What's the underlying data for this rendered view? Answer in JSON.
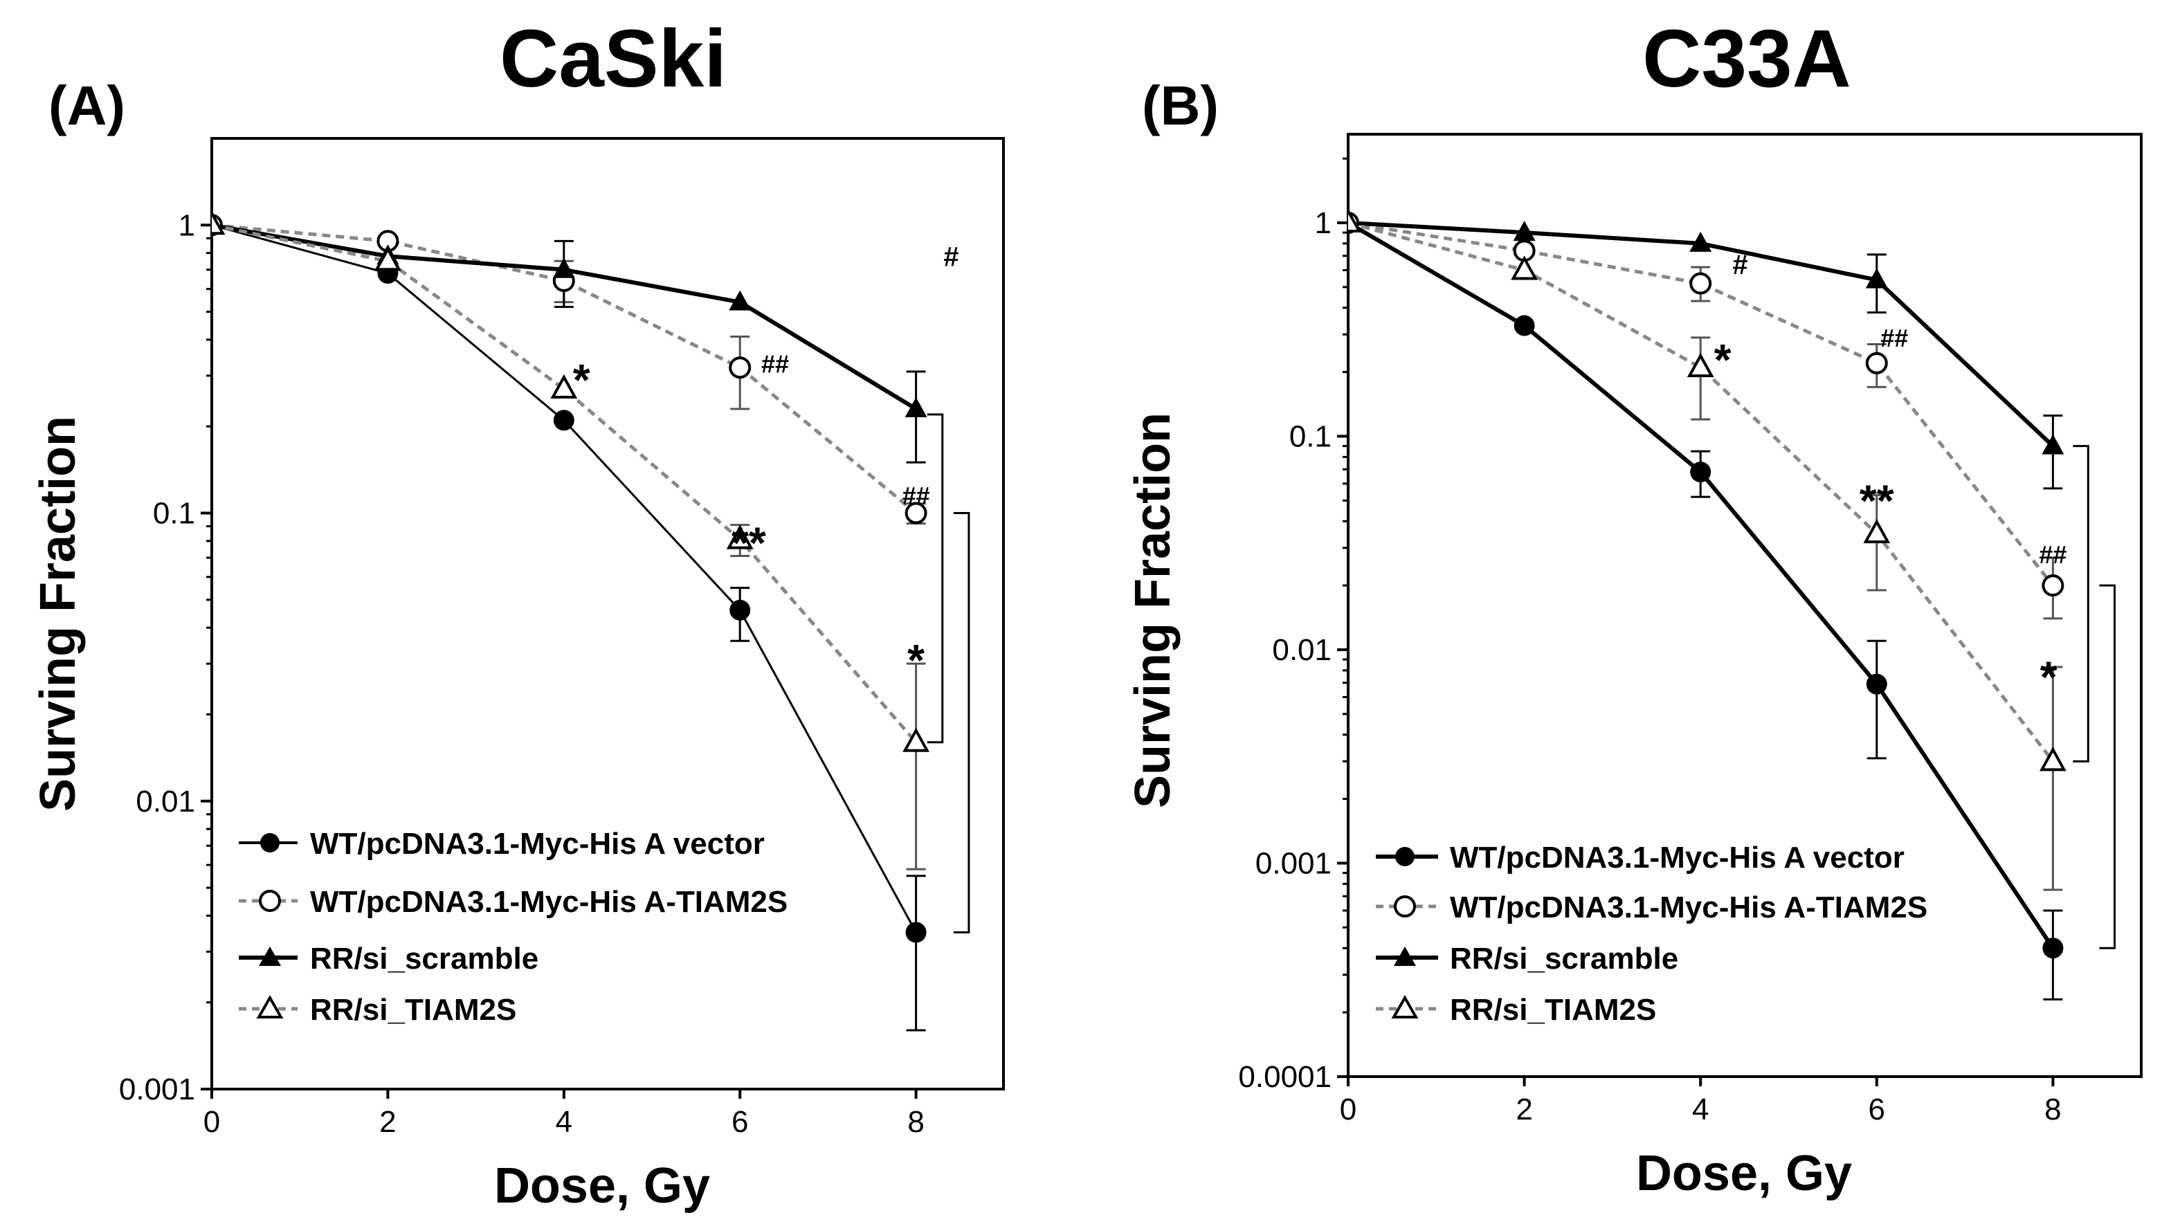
{
  "chart_data": [
    {
      "type": "line",
      "panel": "(A)",
      "title": "CaSki",
      "xlabel": "Dose, Gy",
      "ylabel": "Surving Fraction",
      "yscale": "log",
      "xlim": [
        0,
        9
      ],
      "ylim": [
        0.001,
        2
      ],
      "x_ticks": [
        "0",
        "2",
        "4",
        "6",
        "8"
      ],
      "y_ticks": [
        "0.001",
        "0.01",
        "0.1",
        "1"
      ],
      "legend_position": "bottom-left",
      "x": [
        0,
        2,
        4,
        6,
        8
      ],
      "series": [
        {
          "name": "WT/pcDNA3.1-Myc-His A vector",
          "marker": "filled-circle",
          "line": "solid-thin",
          "color": "#000000",
          "values": [
            1,
            0.68,
            0.21,
            0.046,
            0.0035
          ],
          "err_low": [
            null,
            null,
            null,
            0.036,
            0.0016
          ],
          "err_high": [
            null,
            null,
            null,
            0.055,
            0.0055
          ]
        },
        {
          "name": "WT/pcDNA3.1-Myc-His A-TIAM2S",
          "marker": "open-circle",
          "line": "dashed",
          "color": "#888888",
          "values": [
            1,
            0.88,
            0.64,
            0.32,
            0.1
          ],
          "err_low": [
            null,
            null,
            0.54,
            0.23,
            0.092
          ],
          "err_high": [
            null,
            null,
            0.75,
            0.41,
            0.108
          ]
        },
        {
          "name": "RR/si_scramble",
          "marker": "filled-triangle",
          "line": "solid-thick",
          "color": "#000000",
          "values": [
            1,
            0.78,
            0.7,
            0.54,
            0.23
          ],
          "err_low": [
            null,
            null,
            0.52,
            null,
            0.15
          ],
          "err_high": [
            null,
            null,
            0.88,
            null,
            0.31
          ]
        },
        {
          "name": "RR/si_TIAM2S",
          "marker": "open-triangle",
          "line": "dashed",
          "color": "#888888",
          "values": [
            1,
            0.75,
            0.27,
            0.081,
            0.016
          ],
          "err_low": [
            null,
            null,
            null,
            0.071,
            0.0058
          ],
          "err_high": [
            null,
            null,
            null,
            0.091,
            0.03
          ]
        }
      ],
      "annotations": [
        {
          "text": "#",
          "x": 8.4,
          "y": 0.78
        },
        {
          "text": "*",
          "x": 4.2,
          "y": 0.32
        },
        {
          "text": "##",
          "x": 6.4,
          "y": 0.33
        },
        {
          "text": "**",
          "x": 6.1,
          "y": 0.087
        },
        {
          "text": "##",
          "x": 8.0,
          "y": 0.115
        },
        {
          "text": "*",
          "x": 8.0,
          "y": 0.034
        }
      ],
      "brackets": [
        {
          "x": 8.3,
          "y_top": 0.22,
          "y_bottom": 0.016
        },
        {
          "x": 8.6,
          "y_top": 0.1,
          "y_bottom": 0.0035
        }
      ]
    },
    {
      "type": "line",
      "panel": "(B)",
      "title": "C33A",
      "xlabel": "Dose, Gy",
      "ylabel": "Surving Fraction",
      "yscale": "log",
      "xlim": [
        0,
        9
      ],
      "ylim": [
        0.0001,
        2.6
      ],
      "x_ticks": [
        "0",
        "2",
        "4",
        "6",
        "8"
      ],
      "y_ticks": [
        "0.0001",
        "0.001",
        "0.01",
        "0.1",
        "1"
      ],
      "legend_position": "bottom-left",
      "x": [
        0,
        2,
        4,
        6,
        8
      ],
      "series": [
        {
          "name": "WT/pcDNA3.1-Myc-His A vector",
          "marker": "filled-circle",
          "line": "solid-thick",
          "color": "#000000",
          "values": [
            1,
            0.33,
            0.068,
            0.0069,
            0.0004
          ],
          "err_low": [
            null,
            null,
            0.052,
            0.0031,
            0.00023
          ],
          "err_high": [
            null,
            null,
            0.085,
            0.011,
            0.0006
          ]
        },
        {
          "name": "WT/pcDNA3.1-Myc-His A-TIAM2S",
          "marker": "open-circle",
          "line": "dashed",
          "color": "#888888",
          "values": [
            1,
            0.74,
            0.52,
            0.22,
            0.02
          ],
          "err_low": [
            null,
            null,
            0.43,
            0.17,
            0.014
          ],
          "err_high": [
            null,
            null,
            0.62,
            0.27,
            0.027
          ]
        },
        {
          "name": "RR/si_scramble",
          "marker": "filled-triangle",
          "line": "solid-thick",
          "color": "#000000",
          "values": [
            1,
            0.9,
            0.8,
            0.54,
            0.09
          ],
          "err_low": [
            null,
            null,
            null,
            0.38,
            0.057
          ],
          "err_high": [
            null,
            null,
            null,
            0.71,
            0.125
          ]
        },
        {
          "name": "RR/si_TIAM2S",
          "marker": "open-triangle",
          "line": "dashed",
          "color": "#888888",
          "values": [
            1,
            0.6,
            0.21,
            0.035,
            0.003
          ],
          "err_low": [
            null,
            null,
            0.12,
            0.019,
            0.00075
          ],
          "err_high": [
            null,
            null,
            0.29,
            0.053,
            0.0083
          ]
        }
      ],
      "annotations": [
        {
          "text": "#",
          "x": 4.45,
          "y": 0.64
        },
        {
          "text": "*",
          "x": 4.25,
          "y": 0.26
        },
        {
          "text": "##",
          "x": 6.2,
          "y": 0.29
        },
        {
          "text": "**",
          "x": 6.0,
          "y": 0.057
        },
        {
          "text": "##",
          "x": 8.0,
          "y": 0.028
        },
        {
          "text": "*",
          "x": 7.95,
          "y": 0.0085
        }
      ],
      "brackets": [
        {
          "x": 8.4,
          "y_top": 0.09,
          "y_bottom": 0.003
        },
        {
          "x": 8.7,
          "y_top": 0.02,
          "y_bottom": 0.0004
        }
      ]
    }
  ]
}
